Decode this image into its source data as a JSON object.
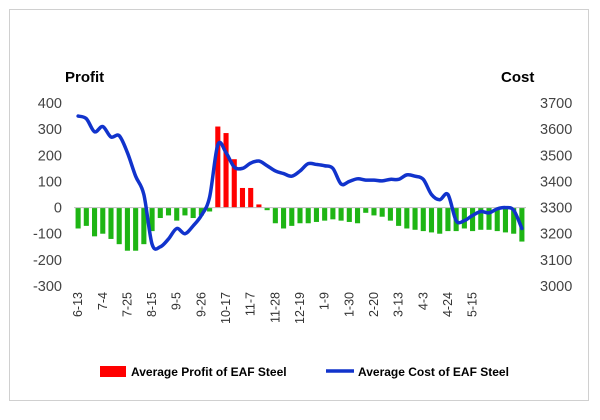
{
  "chart_data": {
    "type": "bar+line",
    "left_axis_title": "Profit",
    "right_axis_title": "Cost",
    "left_ylim": [
      -300,
      400
    ],
    "right_ylim": [
      3000,
      3700
    ],
    "left_ticks": [
      "400",
      "300",
      "200",
      "100",
      "0",
      "-100",
      "-200",
      "-300"
    ],
    "right_ticks": [
      "3700",
      "3600",
      "3500",
      "3400",
      "3300",
      "3200",
      "3100",
      "3000"
    ],
    "x_tick_labels": [
      "6-13",
      "7-4",
      "7-25",
      "8-15",
      "9-5",
      "9-26",
      "10-17",
      "11-7",
      "11-28",
      "12-19",
      "1-9",
      "1-30",
      "2-20",
      "3-13",
      "4-3",
      "4-24",
      "5-15"
    ],
    "x_tick_start_index": 0,
    "x_tick_step": 3,
    "bar_series": {
      "name": "Average Profit of EAF Steel",
      "positive_color": "#ff0000",
      "negative_color": "#1eb514",
      "values": [
        -80,
        -70,
        -110,
        -100,
        -120,
        -140,
        -165,
        -165,
        -140,
        -90,
        -40,
        -30,
        -50,
        -30,
        -40,
        -30,
        -15,
        310,
        285,
        185,
        75,
        75,
        12,
        -10,
        -60,
        -80,
        -70,
        -60,
        -60,
        -55,
        -50,
        -45,
        -50,
        -55,
        -60,
        -20,
        -30,
        -35,
        -50,
        -70,
        -80,
        -85,
        -90,
        -95,
        -100,
        -90,
        -90,
        -80,
        -90,
        -85,
        -85,
        -90,
        -95,
        -100,
        -130
      ]
    },
    "line_series": {
      "name": "Average Cost of EAF Steel",
      "color": "#1133cc",
      "values": [
        3650,
        3640,
        3590,
        3610,
        3570,
        3575,
        3510,
        3420,
        3350,
        3160,
        3150,
        3180,
        3220,
        3200,
        3230,
        3270,
        3340,
        3540,
        3510,
        3455,
        3450,
        3470,
        3478,
        3460,
        3440,
        3430,
        3420,
        3440,
        3468,
        3465,
        3460,
        3450,
        3390,
        3400,
        3410,
        3405,
        3405,
        3402,
        3408,
        3408,
        3425,
        3420,
        3408,
        3350,
        3330,
        3350,
        3250,
        3250,
        3270,
        3285,
        3280,
        3295,
        3300,
        3290,
        3220
      ]
    },
    "legend": {
      "bar_label": "Average Profit of EAF Steel",
      "line_label": "Average Cost of EAF Steel"
    }
  }
}
